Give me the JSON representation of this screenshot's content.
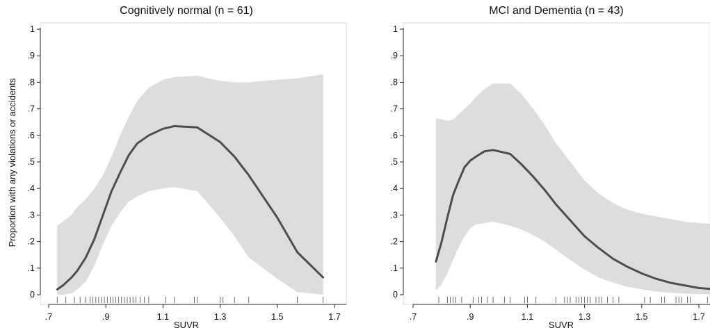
{
  "chart_data": [
    {
      "type": "line",
      "title": "Cognitively normal (n = 61)",
      "xlabel": "SUVR",
      "ylabel": "Proportion with any violations or accidents",
      "xlim": [
        0.7,
        1.82
      ],
      "ylim": [
        0,
        1
      ],
      "xticks": [
        0.7,
        0.9,
        1.1,
        1.3,
        1.5,
        1.7
      ],
      "xtick_labels": [
        ".7",
        ".9",
        "1.1",
        "1.3",
        "1.5",
        "1.7"
      ],
      "yticks": [
        0,
        0.1,
        0.2,
        0.3,
        0.4,
        0.5,
        0.6,
        0.7,
        0.8,
        0.9,
        1
      ],
      "ytick_labels": [
        "0",
        ".1",
        ".2",
        ".3",
        ".4",
        ".5",
        ".6",
        ".7",
        ".8",
        ".9",
        "1"
      ],
      "grid": false,
      "series": [
        {
          "x": [
            0.73,
            0.75,
            0.78,
            0.8,
            0.83,
            0.86,
            0.89,
            0.92,
            0.95,
            0.98,
            1.01,
            1.05,
            1.1,
            1.14,
            1.22,
            1.3,
            1.35,
            1.4,
            1.45,
            1.5,
            1.57,
            1.66
          ],
          "y": [
            0.02,
            0.035,
            0.065,
            0.09,
            0.14,
            0.21,
            0.3,
            0.39,
            0.46,
            0.525,
            0.57,
            0.6,
            0.625,
            0.635,
            0.63,
            0.575,
            0.52,
            0.45,
            0.37,
            0.29,
            0.16,
            0.065
          ],
          "ci_lower": [
            0.0,
            0.0,
            0.005,
            0.02,
            0.05,
            0.11,
            0.19,
            0.26,
            0.31,
            0.35,
            0.37,
            0.39,
            0.4,
            0.405,
            0.39,
            0.29,
            0.22,
            0.14,
            0.1,
            0.06,
            0.01,
            0.0
          ],
          "ci_upper": [
            0.26,
            0.275,
            0.3,
            0.33,
            0.36,
            0.4,
            0.45,
            0.52,
            0.6,
            0.67,
            0.73,
            0.78,
            0.81,
            0.82,
            0.825,
            0.805,
            0.8,
            0.8,
            0.805,
            0.81,
            0.815,
            0.83
          ]
        }
      ],
      "rug": [
        0.73,
        0.76,
        0.79,
        0.81,
        0.83,
        0.845,
        0.855,
        0.865,
        0.875,
        0.885,
        0.895,
        0.905,
        0.915,
        0.925,
        0.935,
        0.945,
        0.955,
        0.965,
        0.975,
        0.985,
        0.995,
        1.005,
        1.02,
        1.035,
        1.05,
        1.11,
        1.14,
        1.21,
        1.22,
        1.3,
        1.31,
        1.35,
        1.4,
        1.57,
        1.66
      ]
    },
    {
      "type": "line",
      "title": "MCI and Dementia (n = 43)",
      "xlabel": "SUVR",
      "ylabel": "",
      "xlim": [
        0.7,
        1.82
      ],
      "ylim": [
        0,
        1
      ],
      "xticks": [
        0.7,
        0.9,
        1.1,
        1.3,
        1.5,
        1.7
      ],
      "xtick_labels": [
        ".7",
        ".9",
        "1.1",
        "1.3",
        "1.5",
        "1.7"
      ],
      "yticks": [
        0,
        0.1,
        0.2,
        0.3,
        0.4,
        0.5,
        0.6,
        0.7,
        0.8,
        0.9,
        1
      ],
      "ytick_labels": [
        "0",
        ".1",
        ".2",
        ".3",
        ".4",
        ".5",
        ".6",
        ".7",
        ".8",
        ".9",
        "1"
      ],
      "grid": false,
      "series": [
        {
          "x": [
            0.78,
            0.8,
            0.82,
            0.84,
            0.86,
            0.88,
            0.9,
            0.92,
            0.95,
            0.98,
            1.04,
            1.08,
            1.12,
            1.16,
            1.2,
            1.25,
            1.3,
            1.35,
            1.4,
            1.45,
            1.5,
            1.55,
            1.6,
            1.65,
            1.7,
            1.82
          ],
          "y": [
            0.125,
            0.2,
            0.29,
            0.375,
            0.43,
            0.48,
            0.505,
            0.52,
            0.54,
            0.545,
            0.53,
            0.49,
            0.445,
            0.395,
            0.34,
            0.28,
            0.22,
            0.175,
            0.135,
            0.105,
            0.08,
            0.06,
            0.045,
            0.035,
            0.025,
            0.015
          ],
          "ci_lower": [
            0.015,
            0.04,
            0.08,
            0.13,
            0.18,
            0.22,
            0.25,
            0.265,
            0.27,
            0.275,
            0.26,
            0.245,
            0.225,
            0.2,
            0.17,
            0.13,
            0.095,
            0.065,
            0.045,
            0.03,
            0.02,
            0.012,
            0.007,
            0.004,
            0.002,
            0.0
          ],
          "ci_upper": [
            0.665,
            0.66,
            0.655,
            0.66,
            0.68,
            0.7,
            0.72,
            0.745,
            0.775,
            0.795,
            0.795,
            0.755,
            0.7,
            0.64,
            0.57,
            0.5,
            0.43,
            0.38,
            0.345,
            0.32,
            0.305,
            0.295,
            0.285,
            0.275,
            0.27,
            0.26
          ]
        }
      ],
      "rug": [
        0.79,
        0.82,
        0.83,
        0.84,
        0.85,
        0.87,
        0.91,
        0.93,
        0.94,
        0.96,
        0.98,
        1.02,
        1.04,
        1.09,
        1.1,
        1.13,
        1.2,
        1.23,
        1.24,
        1.25,
        1.27,
        1.28,
        1.29,
        1.3,
        1.31,
        1.32,
        1.34,
        1.35,
        1.36,
        1.38,
        1.4,
        1.42,
        1.51,
        1.53,
        1.57,
        1.58,
        1.62,
        1.63,
        1.64,
        1.66,
        1.67,
        1.73
      ]
    }
  ],
  "colors": {
    "line": "#4d4d4d",
    "band": "#dddddd",
    "axis": "#222222",
    "rug": "#444444",
    "frame": "#d9d9d9"
  }
}
